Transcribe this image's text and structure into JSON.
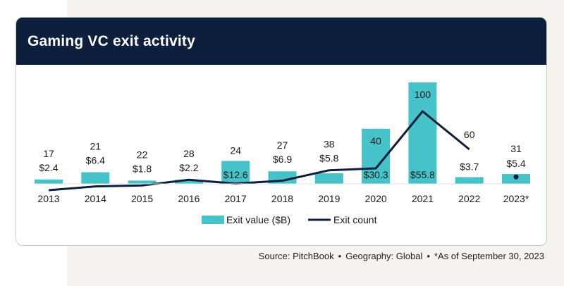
{
  "header": {
    "title": "Gaming VC exit activity"
  },
  "footer": {
    "source": "Source: PitchBook",
    "geography": "Geography: Global",
    "note": "*As of September 30, 2023",
    "separator": "•"
  },
  "colors": {
    "bar": "#45c3c9",
    "line": "#0d1f3c",
    "header_bg": "#0d1f3c"
  },
  "chart_data": {
    "type": "bar",
    "title": "Gaming VC exit activity",
    "categories": [
      "2013",
      "2014",
      "2015",
      "2016",
      "2017",
      "2018",
      "2019",
      "2020",
      "2021",
      "2022",
      "2023*"
    ],
    "series": [
      {
        "name": "Exit value ($B)",
        "type": "bar",
        "values": [
          2.4,
          6.4,
          1.8,
          2.2,
          12.6,
          6.9,
          5.8,
          30.3,
          55.8,
          3.7,
          5.4
        ],
        "labels": [
          "$2.4",
          "$6.4",
          "$1.8",
          "$2.2",
          "$12.6",
          "$6.9",
          "$5.8",
          "$30.3",
          "$55.8",
          "$3.7",
          "$5.4"
        ]
      },
      {
        "name": "Exit count",
        "type": "line",
        "values": [
          17,
          21,
          22,
          28,
          24,
          27,
          38,
          40,
          100,
          60,
          31
        ]
      }
    ],
    "bar_ylim": [
      0,
      55.8
    ],
    "line_ylim": [
      0,
      100
    ],
    "legend": {
      "position": "bottom",
      "entries": [
        "Exit value ($B)",
        "Exit count"
      ]
    },
    "grid": false
  }
}
